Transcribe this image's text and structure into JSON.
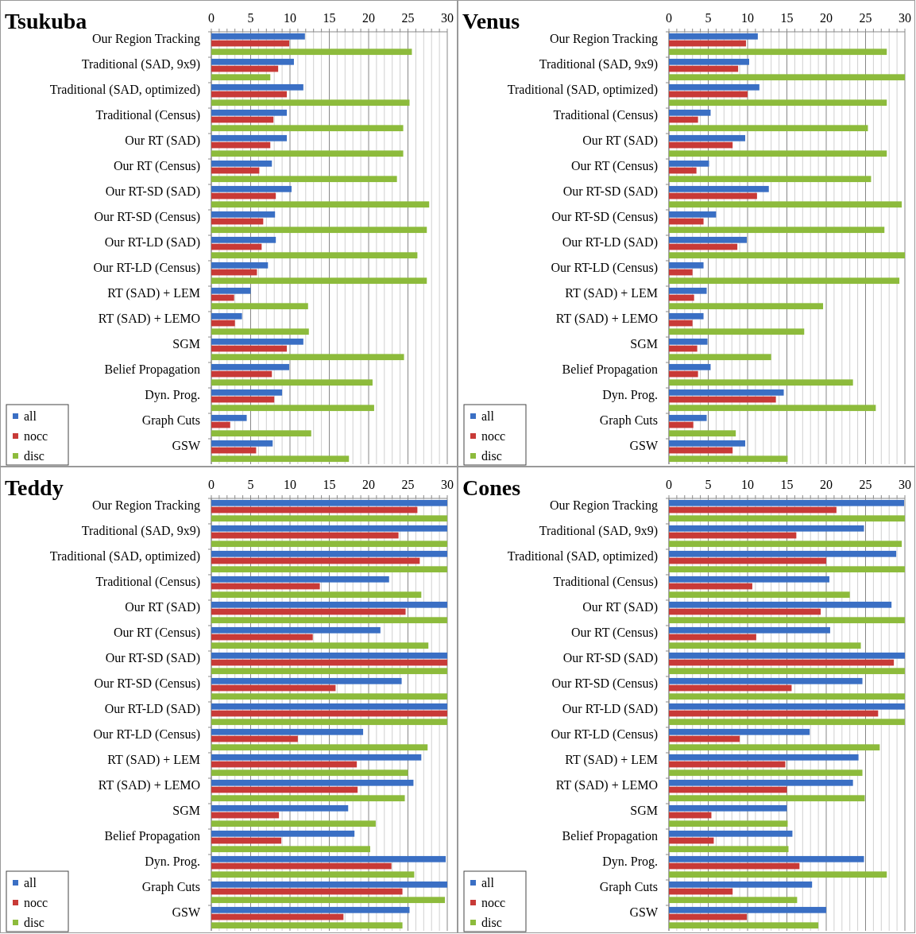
{
  "chart_data": [
    {
      "type": "bar",
      "orientation": "horizontal",
      "title": "Tsukuba",
      "categories": [
        "Our Region Tracking",
        "Traditional (SAD, 9x9)",
        "Traditional (SAD, optimized)",
        "Traditional (Census)",
        "Our RT (SAD)",
        "Our RT (Census)",
        "Our RT-SD (SAD)",
        "Our RT-SD (Census)",
        "Our RT-LD (SAD)",
        "Our RT-LD (Census)",
        "RT (SAD) + LEM",
        "RT (SAD) + LEMO",
        "SGM",
        "Belief Propagation",
        "Dyn. Prog.",
        "Graph Cuts",
        "GSW"
      ],
      "series": [
        {
          "name": "all",
          "color": "#3a6fc4",
          "values": [
            11.9,
            10.5,
            11.7,
            9.6,
            9.6,
            7.7,
            10.2,
            8.1,
            8.2,
            7.2,
            5.0,
            3.9,
            11.7,
            9.9,
            9.0,
            4.5,
            7.8
          ]
        },
        {
          "name": "nocc",
          "color": "#c83a37",
          "values": [
            9.9,
            8.5,
            9.6,
            7.9,
            7.5,
            6.1,
            8.2,
            6.6,
            6.4,
            5.8,
            2.9,
            3.0,
            9.6,
            7.7,
            8.0,
            2.4,
            5.7
          ]
        },
        {
          "name": "disc",
          "color": "#8dbb3c",
          "values": [
            25.5,
            7.5,
            25.2,
            24.4,
            24.4,
            23.6,
            27.7,
            27.4,
            26.2,
            27.4,
            12.3,
            12.4,
            24.5,
            20.5,
            20.7,
            12.7,
            17.5
          ]
        }
      ],
      "xlim": [
        0,
        30
      ],
      "xticks": [
        0,
        {
          "value": 1,
          "label": null
        },
        {
          "value": 2,
          "label": null
        },
        {
          "value": 3,
          "label": null
        },
        {
          "value": 4,
          "label": null
        },
        5,
        {
          "value": 6,
          "label": null
        },
        {
          "value": 7,
          "label": null
        },
        {
          "value": 8,
          "label": null
        },
        {
          "value": 9,
          "label": null
        },
        10,
        {
          "value": 11,
          "label": null
        },
        {
          "value": 12,
          "label": null
        },
        {
          "value": 13,
          "label": null
        },
        {
          "value": 14,
          "label": null
        },
        15,
        {
          "value": 16,
          "label": null
        },
        {
          "value": 17,
          "label": null
        },
        {
          "value": 18,
          "label": null
        },
        {
          "value": 19,
          "label": null
        },
        20,
        {
          "value": 21,
          "label": null
        },
        {
          "value": 22,
          "label": null
        },
        {
          "value": 23,
          "label": null
        },
        {
          "value": 24,
          "label": null
        },
        25,
        {
          "value": 26,
          "label": null
        },
        {
          "value": 27,
          "label": null
        },
        {
          "value": 28,
          "label": null
        },
        {
          "value": 29,
          "label": null
        },
        30
      ],
      "grid": "x",
      "legend": "bottom left"
    },
    {
      "type": "bar",
      "orientation": "horizontal",
      "title": "Venus",
      "categories": [
        "Our Region Tracking",
        "Traditional (SAD, 9x9)",
        "Traditional (SAD, optimized)",
        "Traditional (Census)",
        "Our RT (SAD)",
        "Our RT (Census)",
        "Our RT-SD (SAD)",
        "Our RT-SD (Census)",
        "Our RT-LD (SAD)",
        "Our RT-LD (Census)",
        "RT (SAD) + LEM",
        "RT (SAD) + LEMO",
        "SGM",
        "Belief Propagation",
        "Dyn. Prog.",
        "Graph Cuts",
        "GSW"
      ],
      "series": [
        {
          "name": "all",
          "color": "#3a6fc4",
          "values": [
            11.3,
            10.2,
            11.5,
            5.3,
            9.7,
            5.1,
            12.7,
            6.0,
            9.9,
            4.4,
            4.8,
            4.4,
            4.9,
            5.3,
            14.6,
            4.8,
            9.7
          ]
        },
        {
          "name": "nocc",
          "color": "#c83a37",
          "values": [
            9.8,
            8.8,
            10.0,
            3.7,
            8.1,
            3.5,
            11.2,
            4.4,
            8.7,
            3.0,
            3.2,
            3.0,
            3.6,
            3.7,
            13.6,
            3.1,
            8.1
          ]
        },
        {
          "name": "disc",
          "color": "#8dbb3c",
          "values": [
            27.7,
            30,
            27.7,
            25.3,
            27.7,
            25.7,
            29.6,
            27.4,
            30,
            29.3,
            19.6,
            17.2,
            13.0,
            23.4,
            26.3,
            8.5,
            15.1
          ]
        }
      ],
      "xlim": [
        0,
        30
      ],
      "xticks": [
        0,
        {
          "value": 1,
          "label": null
        },
        {
          "value": 2,
          "label": null
        },
        {
          "value": 3,
          "label": null
        },
        {
          "value": 4,
          "label": null
        },
        5,
        {
          "value": 6,
          "label": null
        },
        {
          "value": 7,
          "label": null
        },
        {
          "value": 8,
          "label": null
        },
        {
          "value": 9,
          "label": null
        },
        10,
        {
          "value": 11,
          "label": null
        },
        {
          "value": 12,
          "label": null
        },
        {
          "value": 13,
          "label": null
        },
        {
          "value": 14,
          "label": null
        },
        15,
        {
          "value": 16,
          "label": null
        },
        {
          "value": 17,
          "label": null
        },
        {
          "value": 18,
          "label": null
        },
        {
          "value": 19,
          "label": null
        },
        20,
        {
          "value": 21,
          "label": null
        },
        {
          "value": 22,
          "label": null
        },
        {
          "value": 23,
          "label": null
        },
        {
          "value": 24,
          "label": null
        },
        25,
        {
          "value": 26,
          "label": null
        },
        {
          "value": 27,
          "label": null
        },
        {
          "value": 28,
          "label": null
        },
        {
          "value": 29,
          "label": null
        },
        30
      ],
      "grid": "x",
      "legend": "bottom left"
    },
    {
      "type": "bar",
      "orientation": "horizontal",
      "title": "Teddy",
      "categories": [
        "Our Region Tracking",
        "Traditional (SAD, 9x9)",
        "Traditional (SAD, optimized)",
        "Traditional (Census)",
        "Our RT (SAD)",
        "Our RT (Census)",
        "Our RT-SD (SAD)",
        "Our RT-SD (Census)",
        "Our RT-LD (SAD)",
        "Our RT-LD (Census)",
        "RT (SAD) + LEM",
        "RT (SAD) + LEMO",
        "SGM",
        "Belief Propagation",
        "Dyn. Prog.",
        "Graph Cuts",
        "GSW"
      ],
      "series": [
        {
          "name": "all",
          "color": "#3a6fc4",
          "values": [
            30,
            30,
            30,
            22.6,
            30,
            21.5,
            30,
            24.2,
            30,
            19.3,
            26.7,
            25.7,
            17.4,
            18.2,
            29.8,
            30,
            25.2
          ]
        },
        {
          "name": "nocc",
          "color": "#c83a37",
          "values": [
            26.2,
            23.8,
            26.5,
            13.8,
            24.7,
            12.9,
            30,
            15.8,
            30,
            11.0,
            18.5,
            18.6,
            8.6,
            8.9,
            22.9,
            24.3,
            16.8
          ]
        },
        {
          "name": "disc",
          "color": "#8dbb3c",
          "values": [
            30,
            30,
            30,
            26.7,
            30,
            27.6,
            30,
            30,
            30,
            27.5,
            25.0,
            24.6,
            20.9,
            20.2,
            25.8,
            29.7,
            24.3
          ]
        }
      ],
      "xlim": [
        0,
        30
      ],
      "xticks": [
        0,
        {
          "value": 1,
          "label": null
        },
        {
          "value": 2,
          "label": null
        },
        {
          "value": 3,
          "label": null
        },
        {
          "value": 4,
          "label": null
        },
        5,
        {
          "value": 6,
          "label": null
        },
        {
          "value": 7,
          "label": null
        },
        {
          "value": 8,
          "label": null
        },
        {
          "value": 9,
          "label": null
        },
        10,
        {
          "value": 11,
          "label": null
        },
        {
          "value": 12,
          "label": null
        },
        {
          "value": 13,
          "label": null
        },
        {
          "value": 14,
          "label": null
        },
        15,
        {
          "value": 16,
          "label": null
        },
        {
          "value": 17,
          "label": null
        },
        {
          "value": 18,
          "label": null
        },
        {
          "value": 19,
          "label": null
        },
        20,
        {
          "value": 21,
          "label": null
        },
        {
          "value": 22,
          "label": null
        },
        {
          "value": 23,
          "label": null
        },
        {
          "value": 24,
          "label": null
        },
        25,
        {
          "value": 26,
          "label": null
        },
        {
          "value": 27,
          "label": null
        },
        {
          "value": 28,
          "label": null
        },
        {
          "value": 29,
          "label": null
        },
        30
      ],
      "grid": "x",
      "legend": "bottom left"
    },
    {
      "type": "bar",
      "orientation": "horizontal",
      "title": "Cones",
      "categories": [
        "Our Region Tracking",
        "Traditional (SAD, 9x9)",
        "Traditional (SAD, optimized)",
        "Traditional (Census)",
        "Our RT (SAD)",
        "Our RT (Census)",
        "Our RT-SD (SAD)",
        "Our RT-SD (Census)",
        "Our RT-LD (SAD)",
        "Our RT-LD (Census)",
        "RT (SAD) + LEM",
        "RT (SAD) + LEMO",
        "SGM",
        "Belief Propagation",
        "Dyn. Prog.",
        "Graph Cuts",
        "GSW"
      ],
      "series": [
        {
          "name": "all",
          "color": "#3a6fc4",
          "values": [
            29.9,
            24.8,
            28.9,
            20.4,
            28.3,
            20.5,
            30,
            24.6,
            30,
            17.9,
            24.1,
            23.4,
            15.0,
            15.7,
            24.8,
            18.2,
            20.0
          ]
        },
        {
          "name": "nocc",
          "color": "#c83a37",
          "values": [
            21.3,
            16.2,
            20.0,
            10.6,
            19.3,
            11.1,
            28.6,
            15.6,
            26.6,
            9.0,
            14.8,
            15.0,
            5.4,
            5.7,
            16.6,
            8.1,
            9.9
          ]
        },
        {
          "name": "disc",
          "color": "#8dbb3c",
          "values": [
            30,
            29.6,
            30,
            23.0,
            30,
            24.4,
            30,
            30,
            30,
            26.8,
            24.6,
            24.9,
            15.1,
            15.2,
            27.7,
            16.3,
            19.0
          ]
        }
      ],
      "xlim": [
        0,
        30
      ],
      "xticks": [
        0,
        {
          "value": 1,
          "label": null
        },
        {
          "value": 2,
          "label": null
        },
        {
          "value": 3,
          "label": null
        },
        {
          "value": 4,
          "label": null
        },
        5,
        {
          "value": 6,
          "label": null
        },
        {
          "value": 7,
          "label": null
        },
        {
          "value": 8,
          "label": null
        },
        {
          "value": 9,
          "label": null
        },
        10,
        {
          "value": 11,
          "label": null
        },
        {
          "value": 12,
          "label": null
        },
        {
          "value": 13,
          "label": null
        },
        {
          "value": 14,
          "label": null
        },
        15,
        {
          "value": 16,
          "label": null
        },
        {
          "value": 17,
          "label": null
        },
        {
          "value": 18,
          "label": null
        },
        {
          "value": 19,
          "label": null
        },
        20,
        {
          "value": 21,
          "label": null
        },
        {
          "value": 22,
          "label": null
        },
        {
          "value": 23,
          "label": null
        },
        {
          "value": 24,
          "label": null
        },
        25,
        {
          "value": 26,
          "label": null
        },
        {
          "value": 27,
          "label": null
        },
        {
          "value": 28,
          "label": null
        },
        {
          "value": 29,
          "label": null
        },
        30
      ],
      "grid": "x",
      "legend": "bottom left"
    }
  ]
}
